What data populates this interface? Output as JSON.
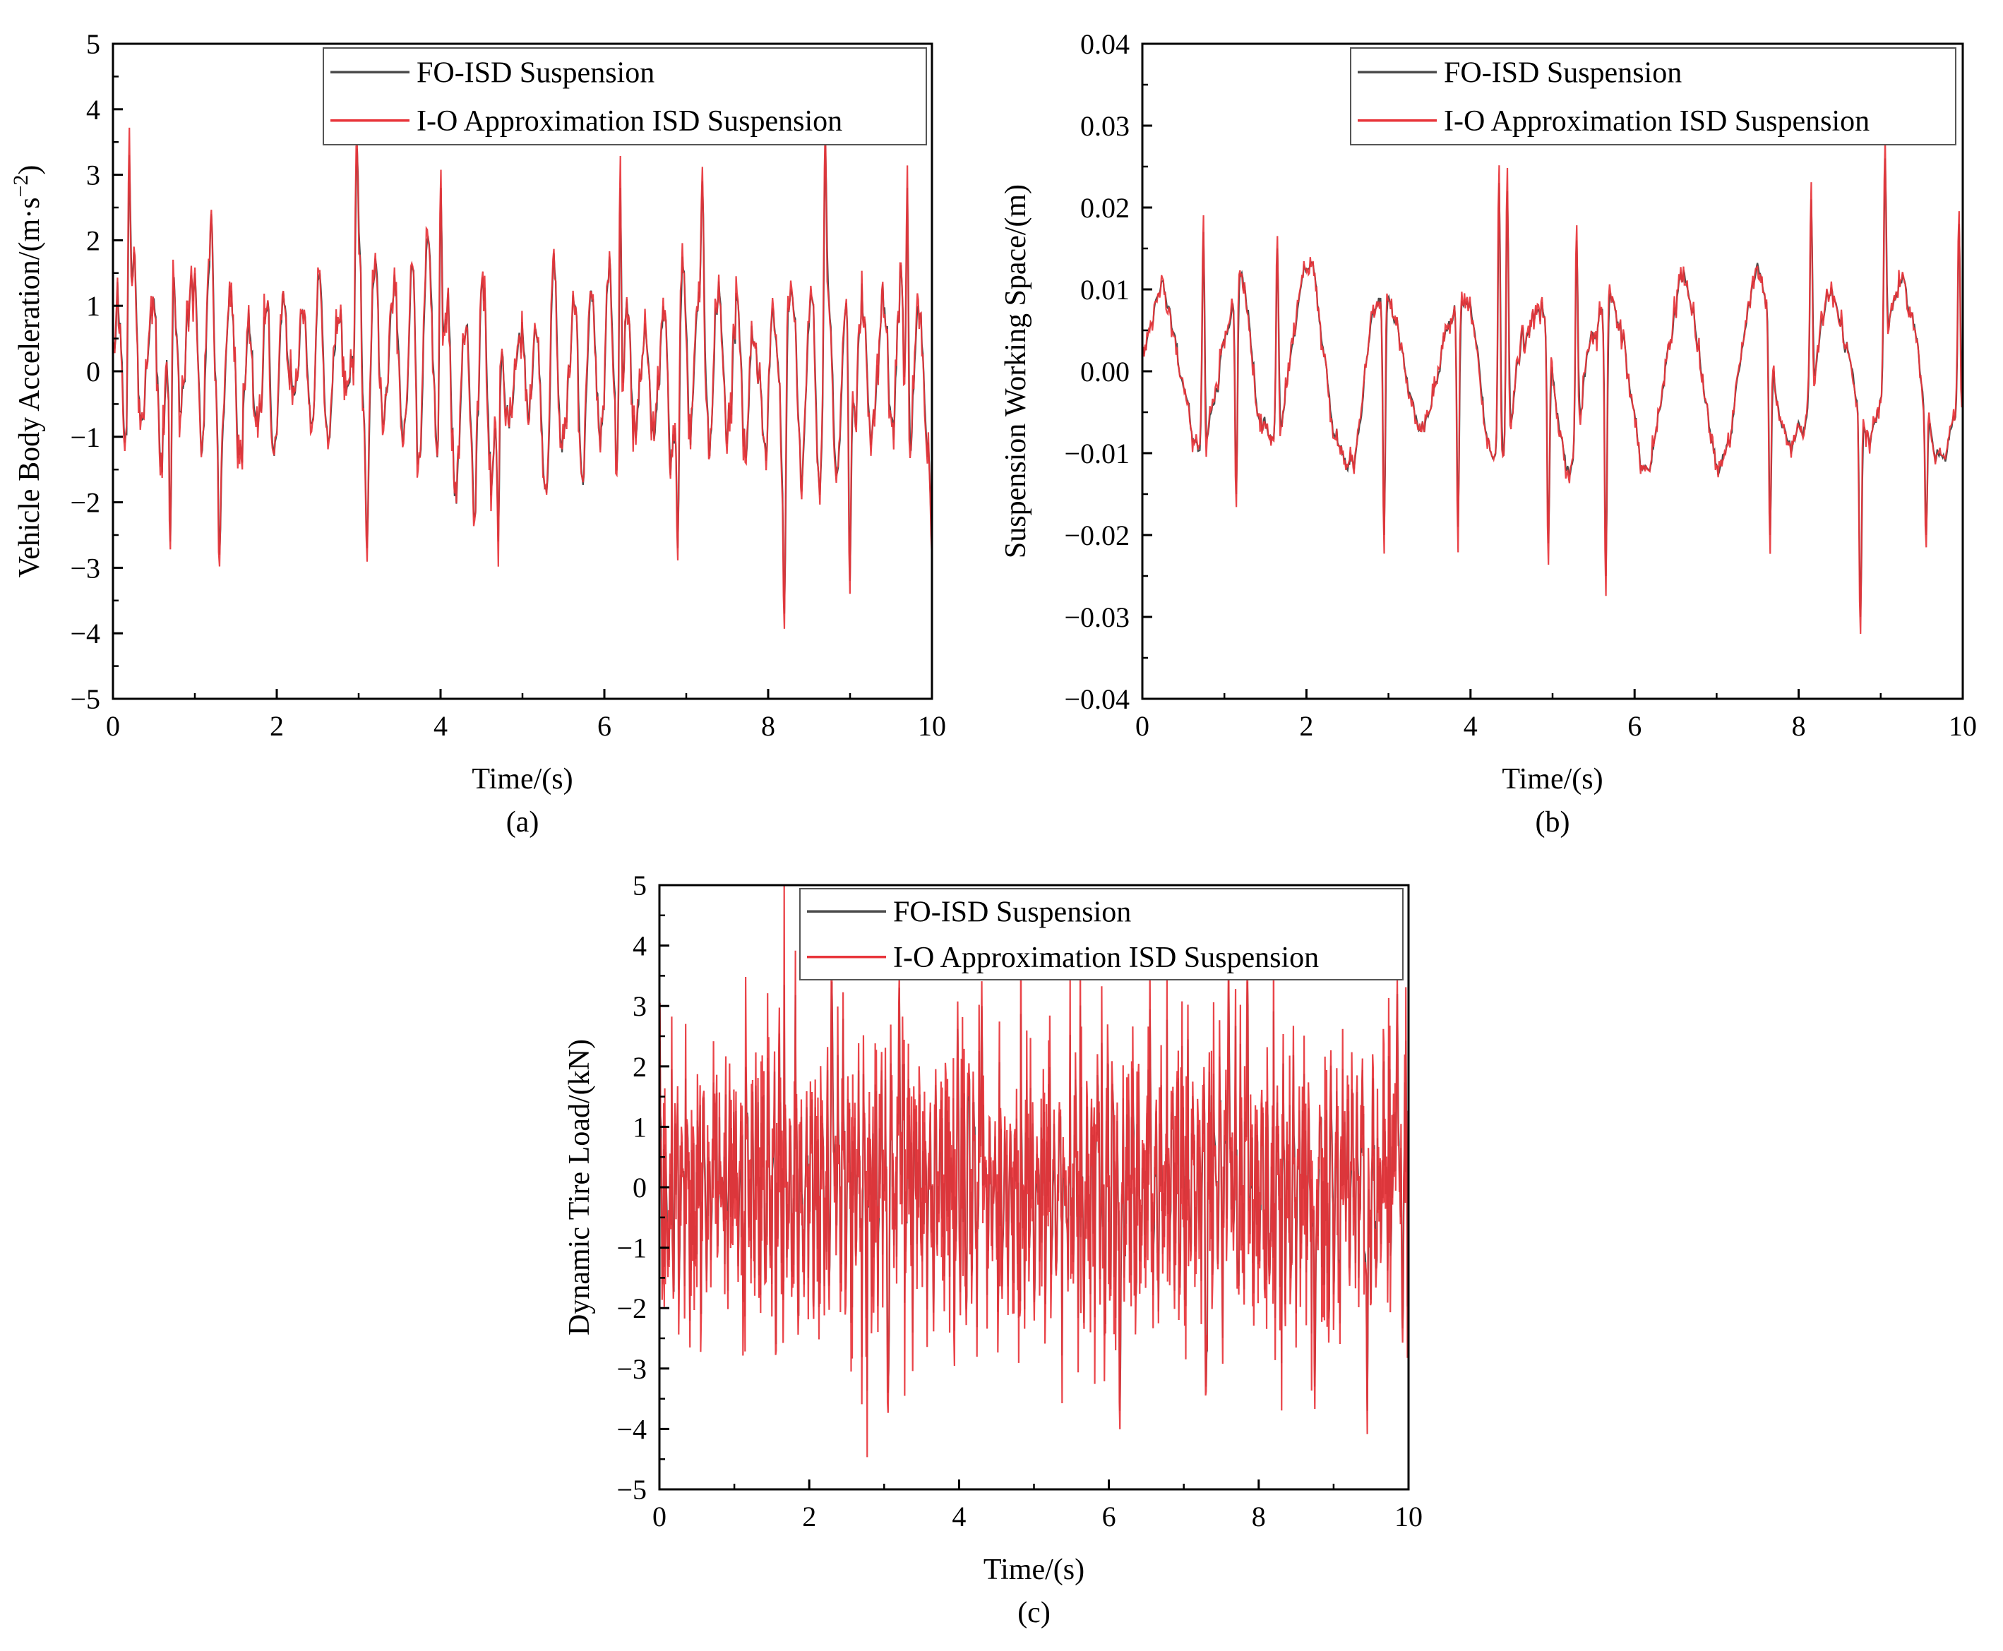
{
  "figure": {
    "colors": {
      "fo": "#4a4a4a",
      "io": "#e8343a",
      "axis": "#000000"
    }
  },
  "chart_data": [
    {
      "type": "line",
      "panel_label": "(a)",
      "xlabel": "Time/(s)",
      "ylabel": "Vehicle Body Acceleration/(m·s",
      "ylabel_sup": "−2",
      "ylabel_end": ")",
      "xlim": [
        0,
        10
      ],
      "ylim": [
        -5,
        5
      ],
      "xticks": [
        0,
        2,
        4,
        6,
        8,
        10
      ],
      "xtick_labels": [
        "0",
        "2",
        "4",
        "6",
        "8",
        "10"
      ],
      "yticks": [
        -5,
        -4,
        -3,
        -2,
        -1,
        0,
        1,
        2,
        3,
        4,
        5
      ],
      "ytick_labels": [
        "−5",
        "−4",
        "−3",
        "−2",
        "−1",
        "0",
        "1",
        "2",
        "3",
        "4",
        "5"
      ],
      "legend": [
        "FO-ISD Suspension",
        "I-O Approximation ISD Suspension"
      ],
      "legend_position": "top-right",
      "series": [
        {
          "name": "FO-ISD Suspension",
          "color": "#4a4a4a"
        },
        {
          "name": "I-O Approximation ISD Suspension",
          "color": "#e8343a"
        }
      ],
      "signal": {
        "peaks_max": [
          [
            0.2,
            3.3
          ],
          [
            1.2,
            2.4
          ],
          [
            2.98,
            3.4
          ],
          [
            4.0,
            2.8
          ],
          [
            6.2,
            2.8
          ],
          [
            7.2,
            2.9
          ],
          [
            8.7,
            3.5
          ],
          [
            9.7,
            2.8
          ]
        ],
        "peaks_min": [
          [
            0.7,
            -2.6
          ],
          [
            1.3,
            -2.8
          ],
          [
            3.1,
            -2.7
          ],
          [
            4.7,
            -2.6
          ],
          [
            6.9,
            -2.7
          ],
          [
            8.2,
            -3.7
          ],
          [
            9.0,
            -3.2
          ],
          [
            10.0,
            -2.7
          ]
        ],
        "std": 1.05,
        "seed": 11,
        "n": 900,
        "osc_freq": 4.5,
        "diff": 0.12,
        "smooth": 3
      }
    },
    {
      "type": "line",
      "panel_label": "(b)",
      "xlabel": "Time/(s)",
      "ylabel": "Suspension Working Space/(m)",
      "xlim": [
        0,
        10
      ],
      "ylim": [
        -0.04,
        0.04
      ],
      "xticks": [
        0,
        2,
        4,
        6,
        8,
        10
      ],
      "xtick_labels": [
        "0",
        "2",
        "4",
        "6",
        "8",
        "10"
      ],
      "yticks": [
        -0.04,
        -0.03,
        -0.02,
        -0.01,
        0.0,
        0.01,
        0.02,
        0.03,
        0.04
      ],
      "ytick_labels": [
        "−0.04",
        "−0.03",
        "−0.02",
        "−0.01",
        "0.00",
        "0.01",
        "0.02",
        "0.03",
        "0.04"
      ],
      "legend": [
        "FO-ISD Suspension",
        "I-O Approximation ISD Suspension"
      ],
      "legend_position": "top-right",
      "series": [
        {
          "name": "FO-ISD Suspension",
          "color": "#4a4a4a"
        },
        {
          "name": "I-O Approximation ISD Suspension",
          "color": "#e8343a"
        }
      ],
      "signal": {
        "peaks_max": [
          [
            0.75,
            0.017
          ],
          [
            1.65,
            0.015
          ],
          [
            4.35,
            0.023
          ],
          [
            4.45,
            0.022
          ],
          [
            5.3,
            0.016
          ],
          [
            8.15,
            0.021
          ],
          [
            9.05,
            0.026
          ],
          [
            9.95,
            0.018
          ]
        ],
        "peaks_min": [
          [
            1.15,
            -0.015
          ],
          [
            2.95,
            -0.02
          ],
          [
            3.85,
            -0.019
          ],
          [
            4.95,
            -0.021
          ],
          [
            5.65,
            -0.025
          ],
          [
            7.65,
            -0.02
          ],
          [
            8.75,
            -0.03
          ],
          [
            9.55,
            -0.02
          ]
        ],
        "std": 0.0085,
        "seed": 23,
        "n": 900,
        "osc_freq": 1.1,
        "diff": 0.1,
        "smooth": 9
      }
    },
    {
      "type": "line",
      "panel_label": "(c)",
      "xlabel": "Time/(s)",
      "ylabel": "Dynamic Tire Load/(kN)",
      "xlim": [
        0,
        10
      ],
      "ylim": [
        -5,
        5
      ],
      "xticks": [
        0,
        2,
        4,
        6,
        8,
        10
      ],
      "xtick_labels": [
        "0",
        "2",
        "4",
        "6",
        "8",
        "10"
      ],
      "yticks": [
        -5,
        -4,
        -3,
        -2,
        -1,
        0,
        1,
        2,
        3,
        4,
        5
      ],
      "ytick_labels": [
        "−5",
        "−4",
        "−3",
        "−2",
        "−1",
        "0",
        "1",
        "2",
        "3",
        "4",
        "5"
      ],
      "legend": [
        "FO-ISD Suspension",
        "I-O Approximation ISD Suspension"
      ],
      "legend_position": "top-right",
      "series": [
        {
          "name": "FO-ISD Suspension",
          "color": "#4a4a4a"
        },
        {
          "name": "I-O Approximation ISD Suspension",
          "color": "#e8343a"
        }
      ],
      "signal": {
        "peaks_max": [
          [
            2.3,
            3.4
          ],
          [
            3.2,
            3.3
          ],
          [
            4.3,
            3.0
          ],
          [
            7.6,
            3.5
          ],
          [
            7.85,
            3.4
          ],
          [
            9.85,
            3.2
          ]
        ],
        "peaks_min": [
          [
            3.05,
            -3.4
          ],
          [
            6.15,
            -3.7
          ],
          [
            7.3,
            -3.3
          ],
          [
            8.75,
            -3.3
          ],
          [
            9.45,
            -3.7
          ]
        ],
        "std": 1.25,
        "seed": 37,
        "n": 1400,
        "osc_freq": 14,
        "diff": 0.14,
        "smooth": 1
      }
    }
  ]
}
